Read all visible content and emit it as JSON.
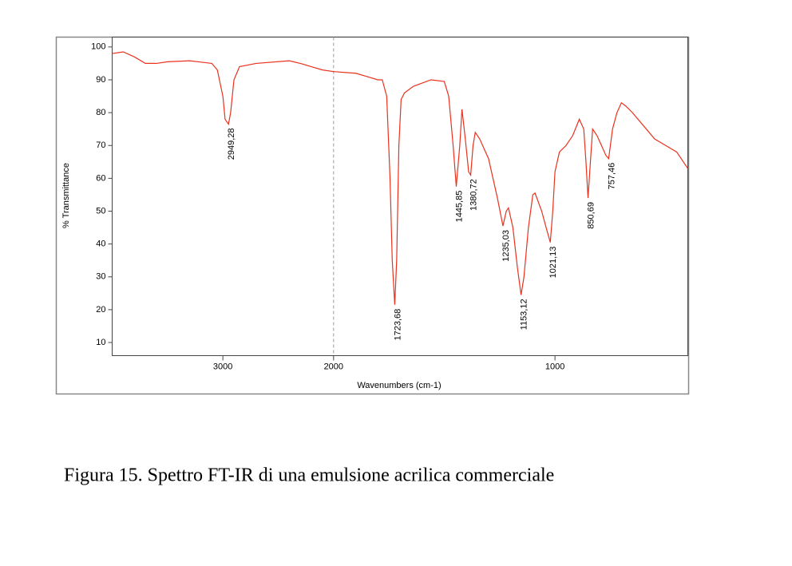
{
  "chart_data": {
    "type": "line",
    "caption": "Figura 15. Spettro FT-IR di una emulsione acrilica commerciale",
    "x_label": "Wavenumbers (cm-1)",
    "y_label": "% Transmittance",
    "color": "#e8321e",
    "xlim": [
      4000,
      400
    ],
    "x_scale_break": {
      "at": 2000,
      "expansion": 2
    },
    "ylim": [
      6,
      103
    ],
    "xticks": [
      3000,
      2000,
      1000
    ],
    "yticks": [
      10,
      20,
      30,
      40,
      50,
      60,
      70,
      80,
      90,
      100
    ],
    "x": [
      4000,
      3900,
      3800,
      3700,
      3600,
      3500,
      3300,
      3100,
      3050,
      3000,
      2980,
      2960,
      2949.28,
      2930,
      2900,
      2850,
      2700,
      2400,
      2300,
      2200,
      2100,
      2000,
      1900,
      1850,
      1800,
      1780,
      1760,
      1745,
      1735,
      1723.68,
      1715,
      1705,
      1695,
      1680,
      1640,
      1600,
      1560,
      1500,
      1480,
      1460,
      1445.85,
      1430,
      1420,
      1405,
      1390,
      1380.72,
      1370,
      1360,
      1340,
      1300,
      1260,
      1235.03,
      1220,
      1210,
      1190,
      1170,
      1153.12,
      1140,
      1120,
      1100,
      1090,
      1060,
      1040,
      1021.13,
      1010,
      1000,
      980,
      950,
      920,
      890,
      870,
      860,
      850.69,
      840,
      830,
      810,
      790,
      770,
      757.46,
      740,
      720,
      700,
      680,
      650,
      600,
      550,
      500,
      450,
      400
    ],
    "values": [
      98,
      98.5,
      97,
      95,
      95,
      95.5,
      95.8,
      95,
      93,
      85,
      78,
      77,
      76.5,
      80,
      90,
      94,
      95,
      95.8,
      95,
      94,
      93,
      92.5,
      92,
      91,
      90,
      90,
      85,
      60,
      35,
      21.5,
      35,
      70,
      84,
      86,
      88,
      89,
      90,
      89.5,
      85,
      70,
      57.5,
      70,
      81,
      72,
      62,
      61,
      70,
      74,
      72,
      66,
      54,
      45.5,
      50,
      51,
      45,
      33,
      24.5,
      30,
      45,
      55,
      55.5,
      50,
      45,
      40.5,
      50,
      62,
      68,
      70,
      73,
      78,
      75,
      65,
      54,
      65,
      75,
      73,
      70,
      67,
      66,
      75,
      80,
      83,
      82,
      80,
      76,
      72,
      70,
      68,
      63
    ],
    "annotations": [
      {
        "x": 2949.28,
        "y": 76.5,
        "label": "2949,28"
      },
      {
        "x": 1723.68,
        "y": 21.5,
        "label": "1723,68"
      },
      {
        "x": 1445.85,
        "y": 57.5,
        "label": "1445,85"
      },
      {
        "x": 1380.72,
        "y": 61,
        "label": "1380,72"
      },
      {
        "x": 1235.03,
        "y": 45.5,
        "label": "1235,03"
      },
      {
        "x": 1153.12,
        "y": 24.5,
        "label": "1153,12"
      },
      {
        "x": 1021.13,
        "y": 40.5,
        "label": "1021,13"
      },
      {
        "x": 850.69,
        "y": 54,
        "label": "850,69"
      },
      {
        "x": 757.46,
        "y": 66,
        "label": "757,46"
      }
    ]
  }
}
